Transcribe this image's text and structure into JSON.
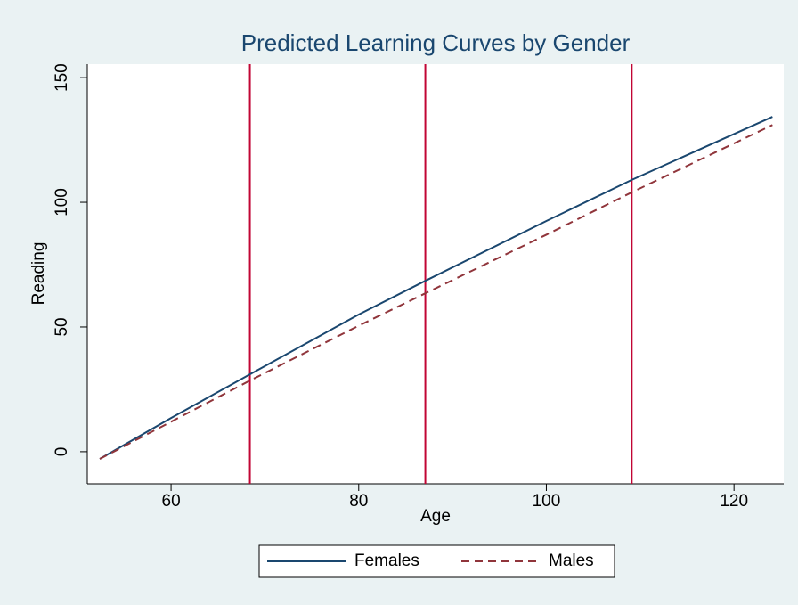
{
  "chart_data": {
    "type": "line",
    "title": "Predicted Learning Curves by Gender",
    "x_label": "Age",
    "y_label": "Reading",
    "x": [
      52.4,
      60,
      68.4,
      80,
      87.1,
      100,
      109.1,
      124.1
    ],
    "series": [
      {
        "name": "Females",
        "color": "#1a476f",
        "dash": "solid",
        "values": [
          -2.9,
          13.5,
          31,
          55,
          68.5,
          92.5,
          109,
          134.3
        ]
      },
      {
        "name": "Males",
        "color": "#90353b",
        "dash": "dashed",
        "values": [
          -2.9,
          12,
          28.5,
          50.5,
          63.5,
          87,
          104,
          131
        ]
      }
    ],
    "vlines": [
      68.4,
      87.1,
      109.1
    ],
    "vline_color": "#c10534",
    "xlim": [
      51.07,
      125.3
    ],
    "xticks": [
      60,
      80,
      100,
      120
    ],
    "ylim": [
      -12.9,
      155.4
    ],
    "yticks": [
      0,
      50,
      100,
      150
    ],
    "grid": false,
    "legend": "bottom"
  }
}
